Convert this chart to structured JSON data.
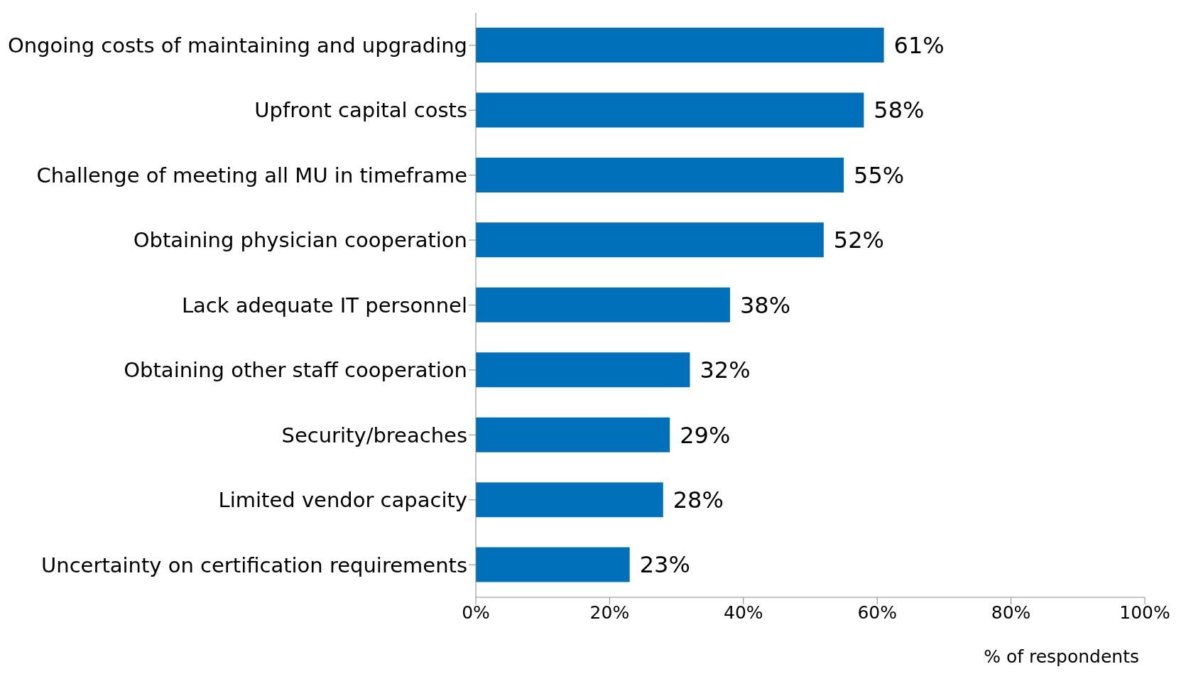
{
  "chart_data": {
    "type": "bar",
    "orientation": "horizontal",
    "xlabel": "% of respondents",
    "categories": [
      "Ongoing costs of maintaining and upgrading",
      "Upfront capital costs",
      "Challenge of meeting all MU in timeframe",
      "Obtaining physician cooperation",
      "Lack adequate IT personnel",
      "Obtaining other staff cooperation",
      "Security/breaches",
      "Limited vendor capacity",
      "Uncertainty on certification requirements"
    ],
    "values": [
      61,
      58,
      55,
      52,
      38,
      32,
      29,
      28,
      23
    ],
    "value_labels": [
      "61%",
      "58%",
      "55%",
      "52%",
      "38%",
      "32%",
      "29%",
      "28%",
      "23%"
    ],
    "color": "#0070ba",
    "xlim": [
      0,
      100
    ],
    "xticks": [
      {
        "value": 0,
        "label": "0%"
      },
      {
        "value": 20,
        "label": "20%"
      },
      {
        "value": 40,
        "label": "40%"
      },
      {
        "value": 60,
        "label": "60%"
      },
      {
        "value": 80,
        "label": "80%"
      },
      {
        "value": 100,
        "label": "100%"
      }
    ],
    "grid": false,
    "legend": false
  }
}
